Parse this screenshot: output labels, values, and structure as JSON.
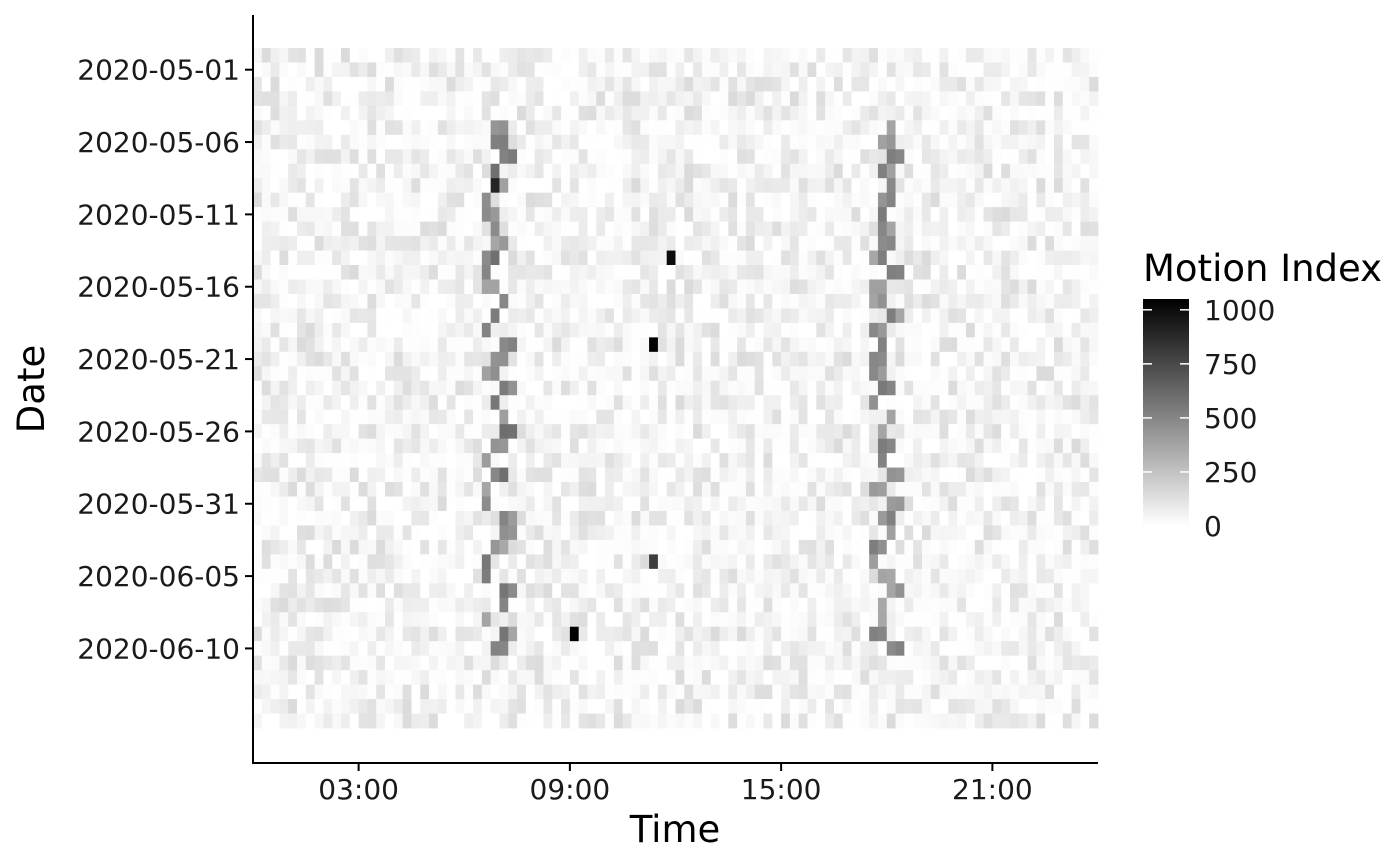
{
  "chart_data": {
    "type": "heatmap",
    "title": "",
    "xlabel": "Time",
    "ylabel": "Date",
    "x_tick_labels": [
      "03:00",
      "09:00",
      "15:00",
      "21:00"
    ],
    "x_tick_hours": [
      3,
      9,
      15,
      21
    ],
    "xlim_hours": [
      0,
      24
    ],
    "y_tick_labels": [
      "2020-05-01",
      "2020-05-06",
      "2020-05-11",
      "2020-05-16",
      "2020-05-21",
      "2020-05-26",
      "2020-05-31",
      "2020-06-05",
      "2020-06-10"
    ],
    "date_start": "2020-04-30",
    "date_end": "2020-06-15",
    "time_bin_minutes": 15,
    "grid": false,
    "legend": {
      "title": "Motion Index",
      "placement": "right",
      "ticks": [
        0,
        250,
        500,
        750,
        1000
      ],
      "tick_labels": [
        "0",
        "250",
        "500",
        "750",
        "1000"
      ],
      "range": [
        0,
        1050
      ]
    },
    "low_color": "#ffffff",
    "high_color": "#000000",
    "pattern": {
      "background_range": [
        0,
        150
      ],
      "morning_band": {
        "center_time": "06:45",
        "value_range": [
          350,
          600
        ]
      },
      "evening_band": {
        "center_time": "17:45",
        "value_range": [
          350,
          550
        ]
      },
      "peaks": [
        {
          "date": "2020-05-14",
          "time": "11:45",
          "value": 1000
        },
        {
          "date": "2020-05-20",
          "time": "11:15",
          "value": 1050
        },
        {
          "date": "2020-06-04",
          "time": "11:15",
          "value": 800
        },
        {
          "date": "2020-06-09",
          "time": "09:00",
          "value": 1050
        },
        {
          "date": "2020-05-09",
          "time": "06:45",
          "value": 900
        }
      ]
    }
  }
}
